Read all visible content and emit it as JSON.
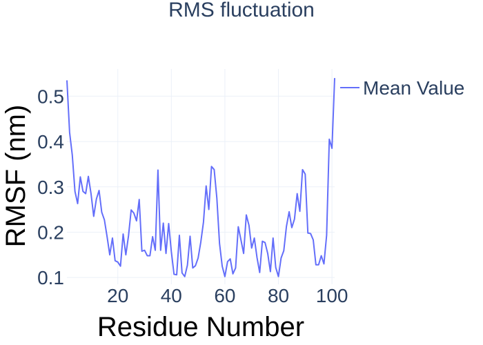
{
  "chart_data": {
    "type": "line",
    "title": "RMS fluctuation",
    "xlabel": "Residue Number",
    "ylabel": "RMSF (nm)",
    "xlim": [
      1,
      101
    ],
    "ylim": [
      0.085,
      0.56
    ],
    "xticks": [
      20,
      40,
      60,
      80,
      100
    ],
    "yticks": [
      0.1,
      0.2,
      0.3,
      0.4,
      0.5
    ],
    "grid": true,
    "legend_position": "top-right",
    "series": [
      {
        "name": "Mean Value",
        "color": "#636efa",
        "x": [
          1,
          2,
          3,
          4,
          5,
          6,
          7,
          8,
          9,
          10,
          11,
          12,
          13,
          14,
          15,
          16,
          17,
          18,
          19,
          20,
          21,
          22,
          23,
          24,
          25,
          26,
          27,
          28,
          29,
          30,
          31,
          32,
          33,
          34,
          35,
          36,
          37,
          38,
          39,
          40,
          41,
          42,
          43,
          44,
          45,
          46,
          47,
          48,
          49,
          50,
          51,
          52,
          53,
          54,
          55,
          56,
          57,
          58,
          59,
          60,
          61,
          62,
          63,
          64,
          65,
          66,
          67,
          68,
          69,
          70,
          71,
          72,
          73,
          74,
          75,
          76,
          77,
          78,
          79,
          80,
          81,
          82,
          83,
          84,
          85,
          86,
          87,
          88,
          89,
          90,
          91,
          92,
          93,
          94,
          95,
          96,
          97,
          98,
          99,
          100,
          101
        ],
        "values": [
          0.535,
          0.42,
          0.37,
          0.29,
          0.263,
          0.322,
          0.29,
          0.285,
          0.323,
          0.285,
          0.235,
          0.273,
          0.292,
          0.244,
          0.227,
          0.19,
          0.15,
          0.187,
          0.137,
          0.134,
          0.125,
          0.196,
          0.15,
          0.192,
          0.249,
          0.242,
          0.225,
          0.272,
          0.158,
          0.16,
          0.148,
          0.148,
          0.19,
          0.16,
          0.337,
          0.16,
          0.22,
          0.153,
          0.219,
          0.157,
          0.107,
          0.106,
          0.193,
          0.11,
          0.102,
          0.127,
          0.191,
          0.121,
          0.126,
          0.143,
          0.178,
          0.222,
          0.302,
          0.25,
          0.345,
          0.338,
          0.275,
          0.175,
          0.125,
          0.102,
          0.135,
          0.141,
          0.108,
          0.121,
          0.212,
          0.183,
          0.153,
          0.238,
          0.215,
          0.165,
          0.187,
          0.144,
          0.111,
          0.18,
          0.177,
          0.153,
          0.113,
          0.187,
          0.122,
          0.102,
          0.143,
          0.159,
          0.213,
          0.245,
          0.21,
          0.229,
          0.285,
          0.246,
          0.338,
          0.328,
          0.198,
          0.197,
          0.183,
          0.128,
          0.128,
          0.148,
          0.13,
          0.193,
          0.405,
          0.385,
          0.54
        ]
      }
    ]
  }
}
